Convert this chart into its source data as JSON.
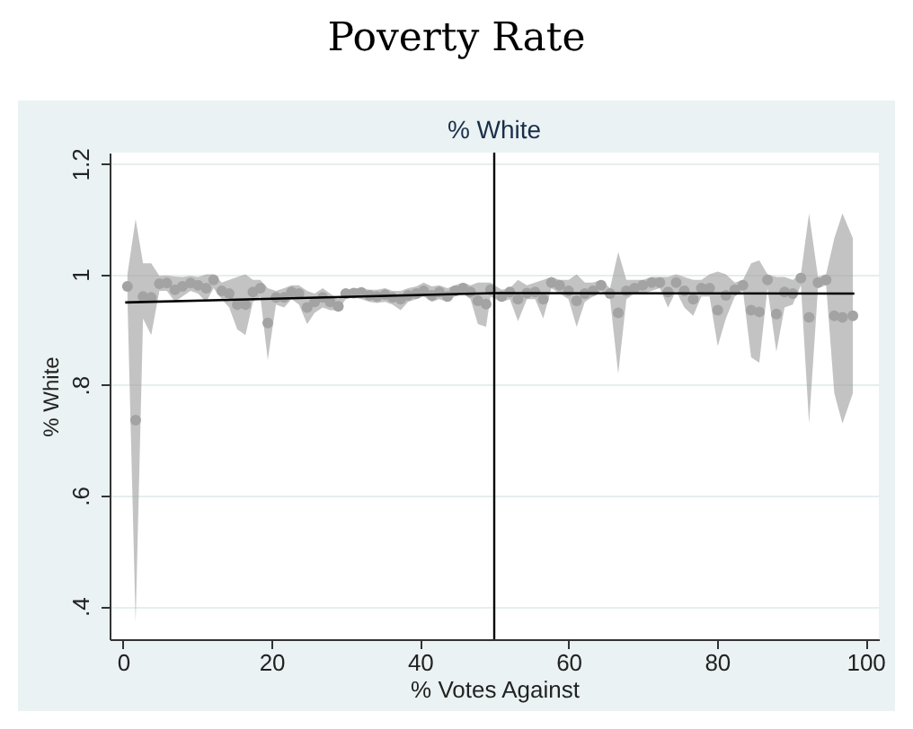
{
  "chart_data": {
    "type": "scatter",
    "title": "Poverty Rate",
    "subtitle": "% White",
    "xlabel": "% Votes Against",
    "ylabel": "% White",
    "xlim": [
      -1.8,
      101.8
    ],
    "xticks": [
      0,
      20,
      40,
      60,
      80,
      100
    ],
    "ylim": [
      0.34,
      1.22
    ],
    "yticks": [
      {
        "value": 0.4,
        "label": ".4"
      },
      {
        "value": 0.6,
        "label": ".6"
      },
      {
        "value": 0.8,
        "label": ".8"
      },
      {
        "value": 1,
        "label": "1"
      },
      {
        "value": 1.2,
        "label": "1.2"
      }
    ],
    "grid": "y",
    "marker": "circle",
    "ref_lines": [
      {
        "axis": "x",
        "value": 50,
        "color": "#000000"
      }
    ],
    "series": [
      {
        "color": "#a3a3a3",
        "x": [
          0.6,
          1.7,
          2.7,
          3.8,
          4.9,
          5.9,
          7.0,
          8.0,
          9.1,
          10.1,
          11.2,
          12.2,
          13.3,
          14.3,
          15.4,
          16.5,
          17.5,
          18.5,
          19.5,
          20.6,
          21.7,
          22.7,
          23.7,
          24.8,
          25.8,
          26.9,
          27.9,
          29.0,
          30.0,
          31.1,
          32.1,
          33.2,
          34.2,
          35.3,
          36.3,
          37.4,
          38.4,
          39.5,
          40.5,
          41.6,
          42.6,
          43.7,
          44.7,
          45.8,
          46.8,
          47.8,
          48.9,
          49.5,
          51.0,
          52.1,
          53.2,
          54.4,
          55.5,
          56.6,
          57.7,
          58.8,
          60.0,
          61.1,
          62.2,
          63.3,
          64.4,
          65.6,
          66.7,
          67.8,
          68.9,
          70.0,
          71.2,
          72.3,
          73.4,
          74.5,
          75.6,
          76.8,
          77.9,
          79.0,
          80.1,
          81.2,
          82.4,
          83.5,
          84.6,
          85.7,
          86.8,
          88.0,
          89.1,
          90.2,
          91.3,
          92.4,
          93.6,
          94.7,
          95.8,
          96.9,
          98.3
        ],
        "values": [
          0.978,
          0.736,
          0.96,
          0.958,
          0.983,
          0.984,
          0.972,
          0.978,
          0.984,
          0.98,
          0.975,
          0.99,
          0.97,
          0.965,
          0.945,
          0.945,
          0.968,
          0.975,
          0.912,
          0.958,
          0.958,
          0.968,
          0.965,
          0.94,
          0.95,
          0.958,
          0.95,
          0.942,
          0.965,
          0.966,
          0.967,
          0.962,
          0.96,
          0.963,
          0.958,
          0.955,
          0.962,
          0.965,
          0.97,
          0.962,
          0.968,
          0.96,
          0.97,
          0.975,
          0.968,
          0.952,
          0.946,
          0.972,
          0.96,
          0.968,
          0.955,
          0.966,
          0.968,
          0.955,
          0.985,
          0.98,
          0.97,
          0.952,
          0.965,
          0.97,
          0.98,
          0.965,
          0.93,
          0.97,
          0.975,
          0.98,
          0.985,
          0.985,
          0.968,
          0.985,
          0.97,
          0.955,
          0.975,
          0.975,
          0.935,
          0.962,
          0.972,
          0.98,
          0.935,
          0.932,
          0.99,
          0.928,
          0.968,
          0.965,
          0.993,
          0.922,
          0.985,
          0.99,
          0.925,
          0.922,
          0.925
        ],
        "lower": [
          0.955,
          0.37,
          0.92,
          0.89,
          0.97,
          0.97,
          0.95,
          0.96,
          0.97,
          0.965,
          0.95,
          0.975,
          0.955,
          0.94,
          0.9,
          0.89,
          0.95,
          0.96,
          0.845,
          0.945,
          0.94,
          0.955,
          0.945,
          0.91,
          0.93,
          0.94,
          0.935,
          0.935,
          0.955,
          0.958,
          0.955,
          0.95,
          0.948,
          0.95,
          0.945,
          0.935,
          0.95,
          0.955,
          0.96,
          0.95,
          0.955,
          0.95,
          0.96,
          0.965,
          0.955,
          0.91,
          0.905,
          0.96,
          0.95,
          0.955,
          0.915,
          0.955,
          0.955,
          0.92,
          0.975,
          0.965,
          0.955,
          0.905,
          0.95,
          0.96,
          0.97,
          0.955,
          0.82,
          0.955,
          0.965,
          0.965,
          0.97,
          0.975,
          0.94,
          0.97,
          0.94,
          0.925,
          0.96,
          0.96,
          0.87,
          0.92,
          0.96,
          0.97,
          0.85,
          0.84,
          0.975,
          0.86,
          0.94,
          0.945,
          0.98,
          0.73,
          0.975,
          0.98,
          0.785,
          0.73,
          0.785
        ],
        "upper": [
          1.0,
          1.1,
          1.02,
          1.02,
          0.997,
          0.998,
          0.996,
          0.995,
          0.997,
          0.995,
          1.0,
          1.0,
          0.985,
          0.99,
          0.995,
          1.0,
          0.99,
          0.99,
          0.975,
          0.97,
          0.975,
          0.98,
          0.98,
          0.97,
          0.965,
          0.975,
          0.965,
          0.955,
          0.972,
          0.975,
          0.975,
          0.972,
          0.972,
          0.975,
          0.97,
          0.97,
          0.975,
          0.978,
          0.985,
          0.978,
          0.98,
          0.975,
          0.98,
          0.985,
          0.98,
          0.985,
          0.985,
          0.985,
          0.972,
          0.975,
          0.99,
          0.98,
          0.985,
          0.99,
          0.995,
          0.99,
          0.99,
          1.0,
          0.985,
          0.985,
          0.99,
          0.975,
          1.04,
          0.99,
          0.99,
          0.99,
          0.995,
          0.995,
          0.995,
          1.0,
          0.995,
          0.99,
          0.99,
          1.0,
          1.005,
          1.0,
          0.985,
          0.99,
          1.02,
          1.025,
          1.0,
          0.995,
          0.995,
          0.99,
          1.0,
          1.11,
          0.995,
          1.0,
          1.065,
          1.11,
          1.065
        ]
      },
      {
        "type": "line",
        "color": "#000000",
        "marker": "none",
        "x": [
          0.3,
          49.9,
          null,
          50,
          98.5
        ],
        "values": [
          0.949,
          0.966,
          null,
          0.966,
          0.965
        ]
      }
    ]
  }
}
